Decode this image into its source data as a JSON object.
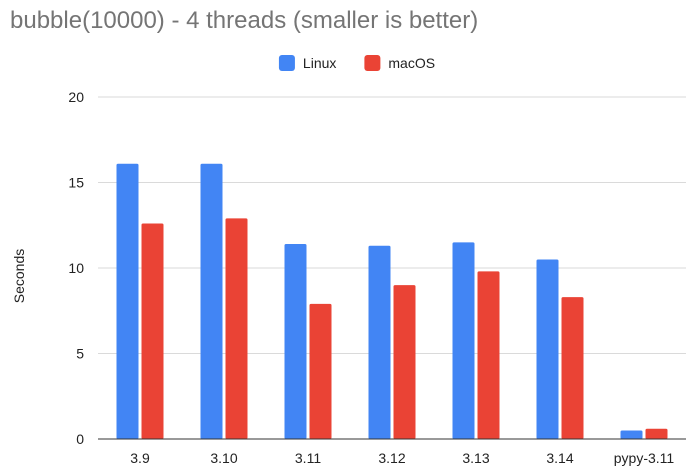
{
  "chart_data": {
    "type": "bar",
    "title": "bubble(10000) - 4 threads (smaller is better)",
    "xlabel": "",
    "ylabel": "Seconds",
    "categories": [
      "3.9",
      "3.10",
      "3.11",
      "3.12",
      "3.13",
      "3.14",
      "pypy-3.11"
    ],
    "series": [
      {
        "name": "Linux",
        "color": "#4285f4",
        "values": [
          16.1,
          16.1,
          11.4,
          11.3,
          11.5,
          10.5,
          0.5
        ]
      },
      {
        "name": "macOS",
        "color": "#ea4335",
        "values": [
          12.6,
          12.9,
          7.9,
          9.0,
          9.8,
          8.3,
          0.6
        ]
      }
    ],
    "ylim": [
      0,
      20
    ],
    "yticks": [
      0,
      5,
      10,
      15,
      20
    ],
    "grid": true,
    "legend_position": "top"
  }
}
